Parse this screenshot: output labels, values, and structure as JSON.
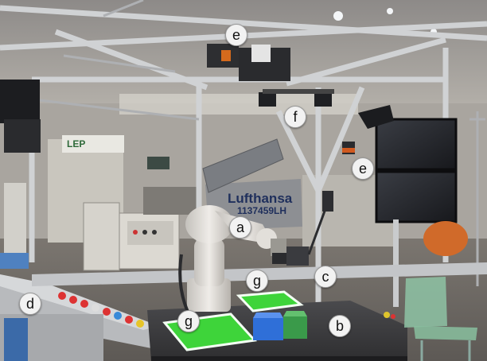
{
  "photo": {
    "subject": "robot-workcell",
    "colors": {
      "annotation_fill": "#f2f2f2",
      "annotation_text": "#111111",
      "green_zone": "#3ed43a",
      "blue_bin": "#2f6fd8",
      "green_bin": "#3a9a4a",
      "robot_body": "#d9d6d2",
      "frame_aluminium": "#c9cbcd",
      "table_top": "#3a3a3c"
    }
  },
  "annotations": {
    "a": "a",
    "b": "b",
    "c": "c",
    "d": "d",
    "e_top": "e",
    "e_right": "e",
    "f": "f",
    "g_left": "g",
    "g_right": "g"
  },
  "signs": {
    "banner_brand": "Lufthansa",
    "banner_line2": "1137459LH",
    "lep_sign": "LEP"
  }
}
